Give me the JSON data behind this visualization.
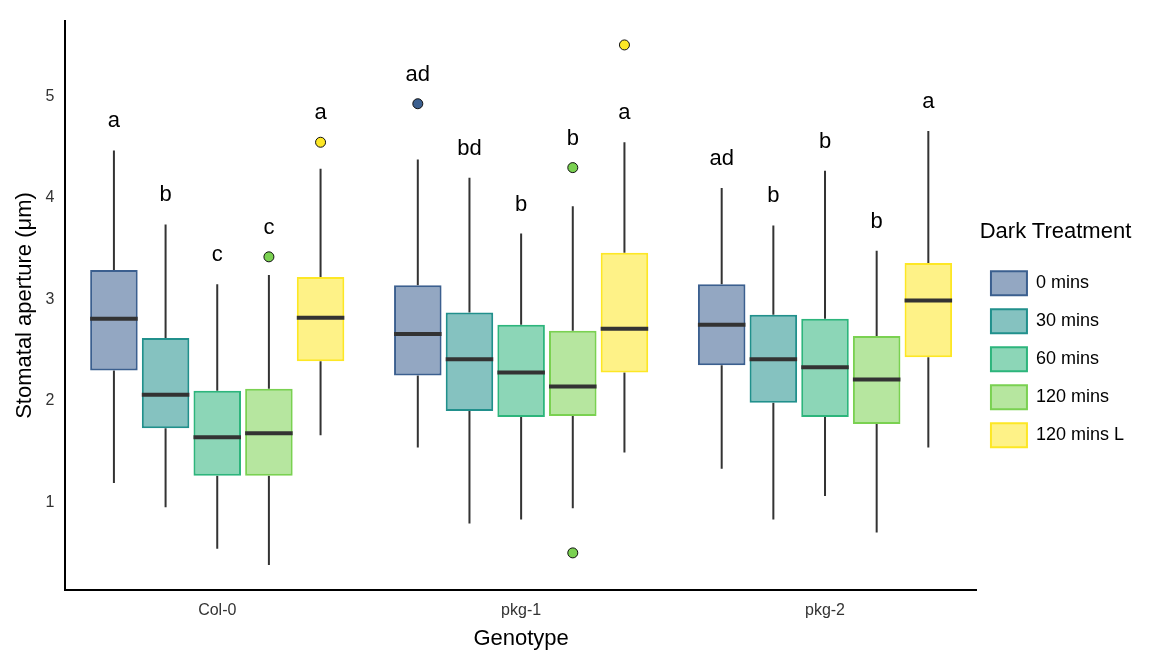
{
  "chart_data": {
    "type": "box",
    "xlabel": "Genotype",
    "ylabel": "Stomatal aperture (μm)",
    "legend_title": "Dark Treatment",
    "legend": "right",
    "grid": false,
    "categories": [
      "Col-0",
      "pkg-1",
      "pkg-2"
    ],
    "ylim": [
      0.13,
      5.75
    ],
    "yticks": [
      1,
      2,
      3,
      4,
      5
    ],
    "series": [
      {
        "name": "0 mins",
        "color": "#3b5f8f",
        "boxes": [
          {
            "low": 1.19,
            "q1": 2.3,
            "median": 2.81,
            "q3": 3.29,
            "high": 4.47
          },
          {
            "low": 1.54,
            "q1": 2.25,
            "median": 2.66,
            "q3": 3.14,
            "high": 4.38,
            "outliers": [
              4.93
            ]
          },
          {
            "low": 1.33,
            "q1": 2.35,
            "median": 2.75,
            "q3": 3.15,
            "high": 4.1
          }
        ]
      },
      {
        "name": "30 mins",
        "color": "#21908c",
        "boxes": [
          {
            "low": 0.95,
            "q1": 1.73,
            "median": 2.06,
            "q3": 2.62,
            "high": 3.74
          },
          {
            "low": 0.79,
            "q1": 1.9,
            "median": 2.41,
            "q3": 2.87,
            "high": 4.2
          },
          {
            "low": 0.83,
            "q1": 1.98,
            "median": 2.41,
            "q3": 2.85,
            "high": 3.73
          }
        ]
      },
      {
        "name": "60 mins",
        "color": "#2db57c",
        "boxes": [
          {
            "low": 0.54,
            "q1": 1.26,
            "median": 1.64,
            "q3": 2.1,
            "high": 3.15
          },
          {
            "low": 0.83,
            "q1": 1.84,
            "median": 2.28,
            "q3": 2.75,
            "high": 3.65
          },
          {
            "low": 1.06,
            "q1": 1.84,
            "median": 2.33,
            "q3": 2.81,
            "high": 4.27
          }
        ]
      },
      {
        "name": "120 mins",
        "color": "#7ad151",
        "boxes": [
          {
            "low": 0.38,
            "q1": 1.26,
            "median": 1.68,
            "q3": 2.12,
            "high": 3.24,
            "outliers": [
              3.42
            ]
          },
          {
            "low": 0.94,
            "q1": 1.85,
            "median": 2.14,
            "q3": 2.69,
            "high": 3.92,
            "outliers": [
              4.3,
              0.5
            ]
          },
          {
            "low": 0.7,
            "q1": 1.77,
            "median": 2.21,
            "q3": 2.64,
            "high": 3.48
          }
        ]
      },
      {
        "name": "120 mins L",
        "color": "#fde725",
        "boxes": [
          {
            "low": 1.66,
            "q1": 2.39,
            "median": 2.82,
            "q3": 3.22,
            "high": 4.29,
            "outliers": [
              4.55
            ]
          },
          {
            "low": 1.49,
            "q1": 2.28,
            "median": 2.71,
            "q3": 3.46,
            "high": 4.55,
            "outliers": [
              5.51
            ]
          },
          {
            "low": 1.54,
            "q1": 2.43,
            "median": 2.99,
            "q3": 3.36,
            "high": 4.66
          }
        ]
      }
    ],
    "annotations": [
      "a",
      "b",
      "c",
      "c",
      "a",
      "ad",
      "bd",
      "b",
      "b",
      "a",
      "ad",
      "b",
      "b",
      "b",
      "a"
    ]
  }
}
